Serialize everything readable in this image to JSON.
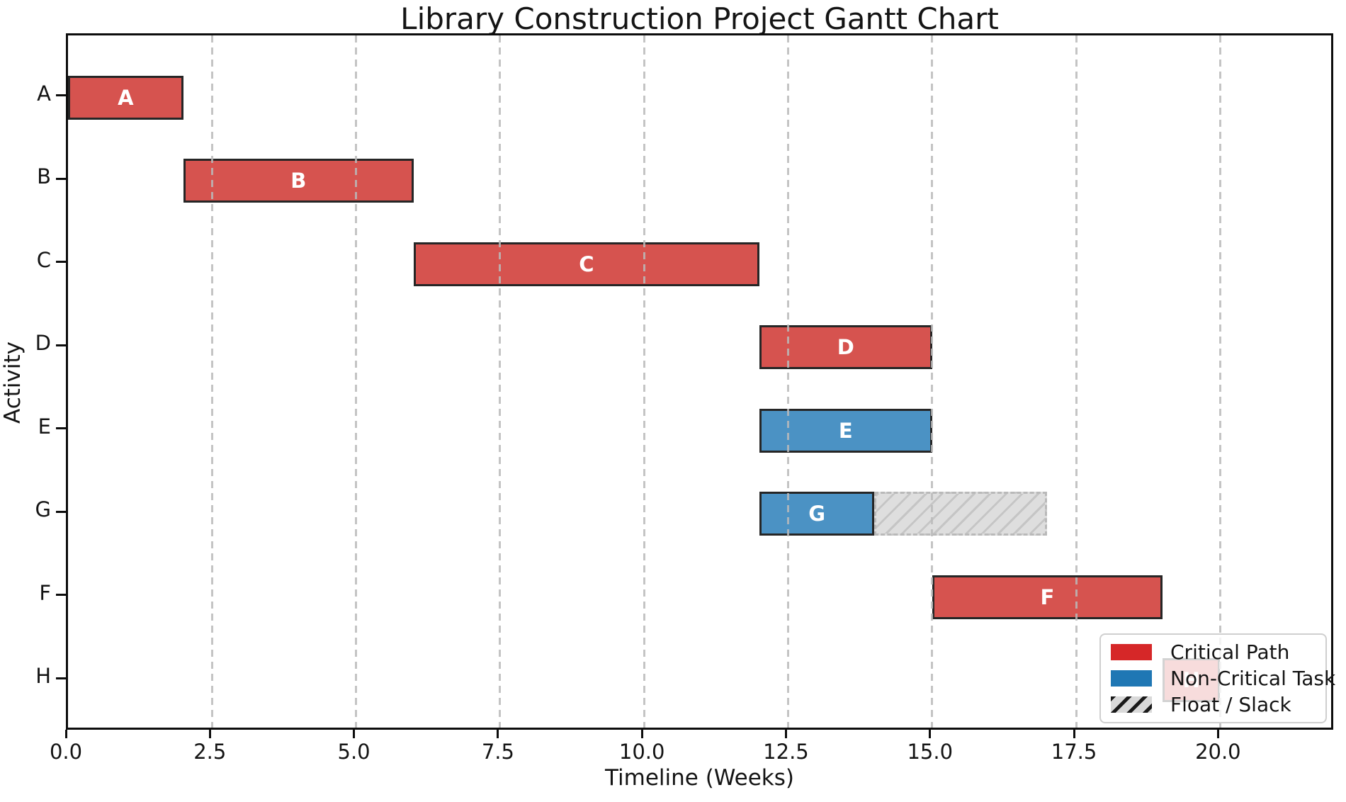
{
  "chart_data": {
    "type": "bar",
    "subtype": "gantt",
    "title": "Library Construction Project Gantt Chart",
    "xlabel": "Timeline (Weeks)",
    "ylabel": "Activity",
    "xlim": [
      0,
      22
    ],
    "grid": true,
    "xticks": [
      {
        "value": 0,
        "label": "0.0"
      },
      {
        "value": 2.5,
        "label": "2.5"
      },
      {
        "value": 5,
        "label": "5.0"
      },
      {
        "value": 7.5,
        "label": "7.5"
      },
      {
        "value": 10,
        "label": "10.0"
      },
      {
        "value": 12.5,
        "label": "12.5"
      },
      {
        "value": 15,
        "label": "15.0"
      },
      {
        "value": 17.5,
        "label": "17.5"
      },
      {
        "value": 20,
        "label": "20.0"
      }
    ],
    "rows": [
      "A",
      "B",
      "C",
      "D",
      "E",
      "G",
      "F",
      "H"
    ],
    "tasks": [
      {
        "activity": "A",
        "start": 0,
        "end": 2,
        "kind": "critical"
      },
      {
        "activity": "B",
        "start": 2,
        "end": 6,
        "kind": "critical"
      },
      {
        "activity": "C",
        "start": 6,
        "end": 12,
        "kind": "critical"
      },
      {
        "activity": "D",
        "start": 12,
        "end": 15,
        "kind": "critical"
      },
      {
        "activity": "E",
        "start": 12,
        "end": 15,
        "kind": "noncritical"
      },
      {
        "activity": "G",
        "start": 12,
        "end": 14,
        "kind": "noncritical",
        "float_start": 14,
        "float_end": 17
      },
      {
        "activity": "F",
        "start": 15,
        "end": 19,
        "kind": "critical"
      },
      {
        "activity": "H",
        "start": 19,
        "end": 20,
        "kind": "critical"
      }
    ],
    "legend": {
      "position": "lower right",
      "items": [
        {
          "label": "Critical Path",
          "swatch": "critical"
        },
        {
          "label": "Non-Critical Task",
          "swatch": "noncritical"
        },
        {
          "label": "Float / Slack",
          "swatch": "float"
        }
      ]
    },
    "colors": {
      "critical_bar": "#d6534f",
      "noncritical_bar": "#4b92c4",
      "bar_edge": "#262626",
      "critical_legend": "#d62728",
      "noncritical_legend": "#1f77b4",
      "float_fill": "#dedede",
      "float_hatch": "#c5c5c5",
      "bar_label_text": "#ffffff"
    }
  }
}
